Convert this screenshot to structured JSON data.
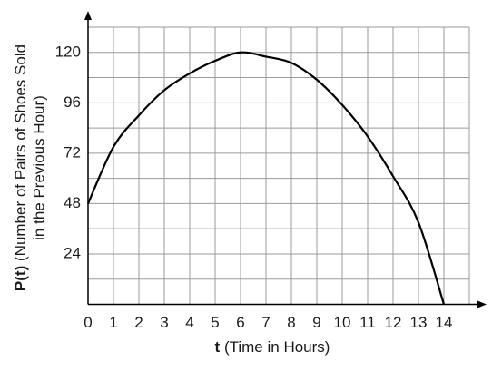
{
  "chart_data": {
    "type": "line",
    "xlabel": {
      "var": "t",
      "text": "(Time in Hours)"
    },
    "ylabel": [
      "P(t)",
      "(Number of Pairs of Shoes Sold",
      "in the Previous Hour)"
    ],
    "x": [
      0,
      1,
      2,
      3,
      4,
      5,
      6,
      7,
      8,
      9,
      10,
      11,
      12,
      13,
      14
    ],
    "series": [
      {
        "color": "#000000",
        "values": [
          48,
          75,
          90,
          102,
          110,
          116,
          120,
          118,
          115,
          107,
          95,
          80,
          61,
          39,
          0
        ]
      }
    ],
    "xlim": [
      0,
      15
    ],
    "ylim": [
      0,
      132
    ],
    "xticks": [
      0,
      1,
      2,
      3,
      4,
      5,
      6,
      7,
      8,
      9,
      10,
      11,
      12,
      13,
      14
    ],
    "yticks": [
      24,
      48,
      72,
      96,
      120
    ],
    "y_grid": [
      12,
      24,
      36,
      48,
      60,
      72,
      84,
      96,
      108,
      120,
      132
    ],
    "grid": true
  }
}
